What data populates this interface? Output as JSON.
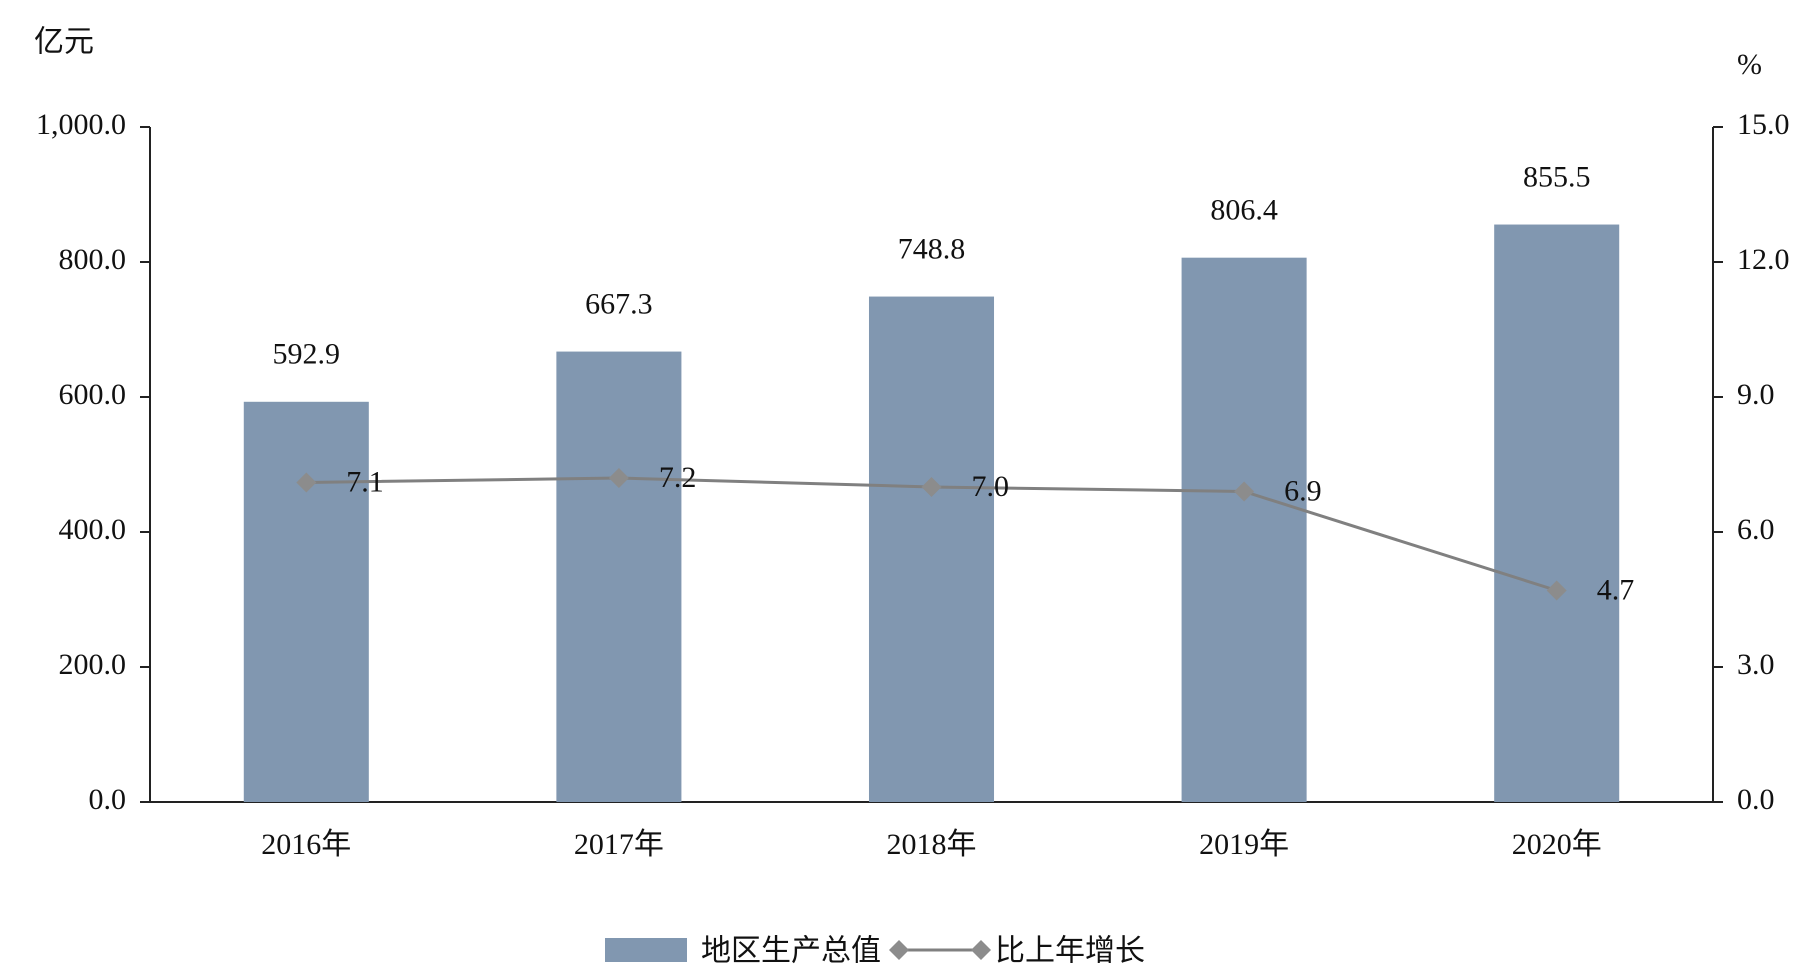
{
  "chart_data": {
    "type": "bar",
    "y_axis_title": "亿元",
    "y2_axis_title": "%",
    "categories": [
      "2016年",
      "2017年",
      "2018年",
      "2019年",
      "2020年"
    ],
    "series": [
      {
        "name": "地区生产总值",
        "type": "bar",
        "color": "#8197b0",
        "values": [
          592.9,
          667.3,
          748.8,
          806.4,
          855.5
        ]
      },
      {
        "name": "比上年增长",
        "type": "line",
        "axis": "y2",
        "color": "#808080",
        "values": [
          7.1,
          7.2,
          7.0,
          6.9,
          4.7
        ],
        "value_labels": [
          "7.1",
          "7.2",
          "7.0",
          "6.9",
          "4.7"
        ]
      }
    ],
    "ylim": [
      0,
      1000
    ],
    "yticks": [
      {
        "value": 0,
        "label": "0.0"
      },
      {
        "value": 200,
        "label": "200.0"
      },
      {
        "value": 400,
        "label": "400.0"
      },
      {
        "value": 600,
        "label": "600.0"
      },
      {
        "value": 800,
        "label": "800.0"
      },
      {
        "value": 1000,
        "label": "1,000.0"
      }
    ],
    "y2lim": [
      0,
      15
    ],
    "y2ticks": [
      {
        "value": 0,
        "label": "0.0"
      },
      {
        "value": 3,
        "label": "3.0"
      },
      {
        "value": 6,
        "label": "6.0"
      },
      {
        "value": 9,
        "label": "9.0"
      },
      {
        "value": 12,
        "label": "12.0"
      },
      {
        "value": 15,
        "label": "15.0"
      }
    ],
    "legend": "bottom"
  }
}
